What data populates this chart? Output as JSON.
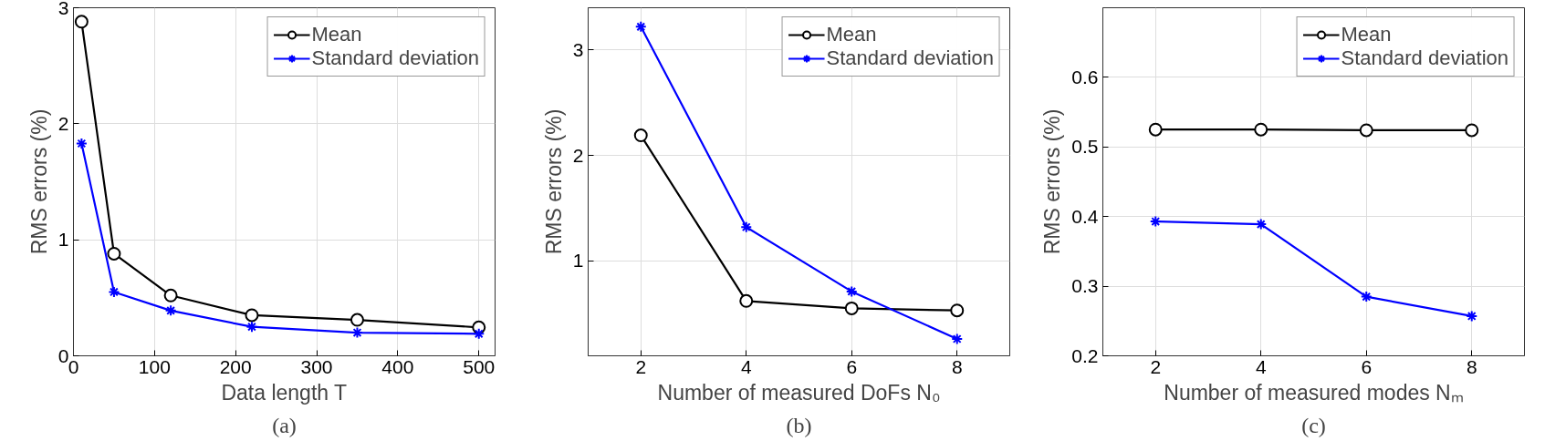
{
  "chart_data": [
    {
      "type": "line",
      "xlabel": "Data length T",
      "ylabel": "RMS errors (%)",
      "annotations": [
        "(a)"
      ],
      "x": [
        10,
        50,
        120,
        220,
        350,
        500
      ],
      "series": [
        {
          "name": "Mean",
          "color": "#000000",
          "marker": "circle",
          "values": [
            2.88,
            0.88,
            0.52,
            0.35,
            0.31,
            0.245
          ]
        },
        {
          "name": "Standard deviation",
          "color": "#0000ff",
          "marker": "cross",
          "values": [
            1.83,
            0.55,
            0.39,
            0.25,
            0.2,
            0.19
          ]
        }
      ],
      "xlim": [
        0,
        520
      ],
      "ylim": [
        0,
        3
      ],
      "xticks": [
        0,
        100,
        200,
        300,
        400,
        500
      ],
      "yticks": [
        0,
        1,
        2,
        3
      ],
      "grid": true,
      "legend": "top right",
      "line_style": "solid"
    },
    {
      "type": "line",
      "xlabel": "Number of measured DoFs N₀",
      "ylabel": "RMS errors (%)",
      "annotations": [
        "(b)"
      ],
      "x": [
        2,
        4,
        6,
        8
      ],
      "series": [
        {
          "name": "Mean",
          "color": "#000000",
          "marker": "circle",
          "values": [
            2.19,
            0.62,
            0.55,
            0.53
          ]
        },
        {
          "name": "Standard deviation",
          "color": "#0000ff",
          "marker": "cross",
          "values": [
            3.22,
            1.32,
            0.71,
            0.26
          ]
        }
      ],
      "xlim": [
        1,
        9
      ],
      "ylim": [
        0.1,
        3.4
      ],
      "xticks": [
        2,
        4,
        6,
        8
      ],
      "yticks": [
        1,
        2,
        3
      ],
      "grid": true,
      "legend": "top right",
      "line_style": "solid"
    },
    {
      "type": "line",
      "xlabel": "Number of measured modes Nₘ",
      "ylabel": "RMS errors (%)",
      "annotations": [
        "(c)"
      ],
      "x": [
        2,
        4,
        6,
        8
      ],
      "series": [
        {
          "name": "Mean",
          "color": "#000000",
          "marker": "circle",
          "values": [
            0.525,
            0.525,
            0.524,
            0.524
          ]
        },
        {
          "name": "Standard deviation",
          "color": "#0000ff",
          "marker": "cross",
          "values": [
            0.393,
            0.389,
            0.285,
            0.257
          ]
        }
      ],
      "xlim": [
        1,
        9
      ],
      "ylim": [
        0.2,
        0.7
      ],
      "xticks": [
        2,
        4,
        6,
        8
      ],
      "yticks": [
        0.2,
        0.3,
        0.4,
        0.5,
        0.6
      ],
      "grid": true,
      "legend": "top right",
      "line_style": "solid"
    }
  ]
}
